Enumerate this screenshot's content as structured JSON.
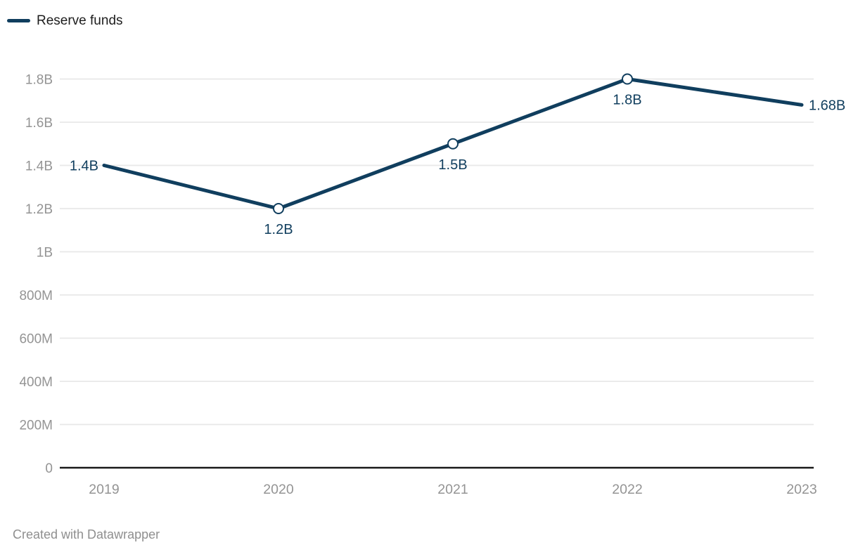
{
  "legend": {
    "label": "Reserve funds"
  },
  "footer": {
    "attribution": "Created with Datawrapper"
  },
  "colors": {
    "line": "#103e5e",
    "grid": "#e8e8e8",
    "baseline": "#1a1a1a",
    "axis_text": "#949494",
    "data_label": "#103e5e",
    "marker_fill": "#ffffff"
  },
  "chart_data": {
    "type": "line",
    "title": "",
    "xlabel": "",
    "ylabel": "",
    "categories": [
      "2019",
      "2020",
      "2021",
      "2022",
      "2023"
    ],
    "series": [
      {
        "name": "Reserve funds",
        "values": [
          1400000000,
          1200000000,
          1500000000,
          1800000000,
          1680000000
        ],
        "point_labels": [
          "1.4B",
          "1.2B",
          "1.5B",
          "1.8B",
          "1.68B"
        ],
        "label_positions": [
          "left",
          "below",
          "below",
          "below",
          "right"
        ],
        "markers": [
          false,
          true,
          true,
          true,
          false
        ]
      }
    ],
    "ylim": [
      0,
      1800000000
    ],
    "y_ticks": [
      {
        "value": 0,
        "label": "0"
      },
      {
        "value": 200000000,
        "label": "200M"
      },
      {
        "value": 400000000,
        "label": "400M"
      },
      {
        "value": 600000000,
        "label": "600M"
      },
      {
        "value": 800000000,
        "label": "800M"
      },
      {
        "value": 1000000000,
        "label": "1B"
      },
      {
        "value": 1200000000,
        "label": "1.2B"
      },
      {
        "value": 1400000000,
        "label": "1.4B"
      },
      {
        "value": 1600000000,
        "label": "1.6B"
      },
      {
        "value": 1800000000,
        "label": "1.8B"
      }
    ],
    "grid": true,
    "legend_position": "top-left"
  }
}
